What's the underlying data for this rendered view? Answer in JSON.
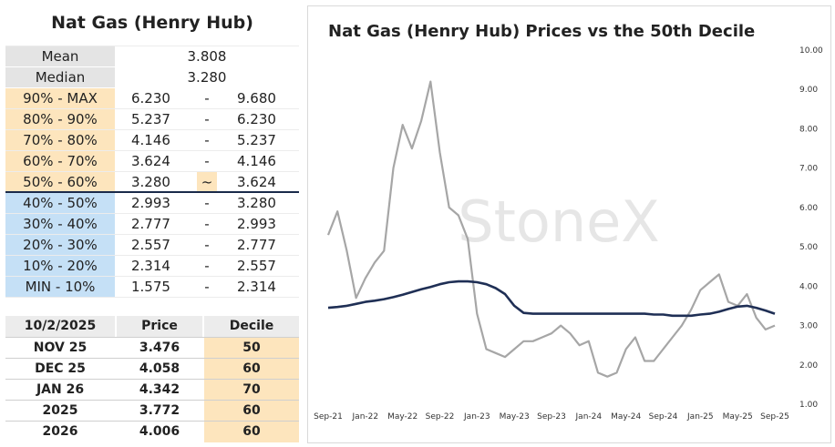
{
  "decile_table": {
    "title": "Nat Gas (Henry Hub)",
    "stats": [
      {
        "label": "Mean",
        "value": "3.808"
      },
      {
        "label": "Median",
        "value": "3.280"
      }
    ],
    "rows": [
      {
        "label": "90% - MAX",
        "low": "6.230",
        "sep": "-",
        "high": "9.680",
        "color": "orange"
      },
      {
        "label": "80% - 90%",
        "low": "5.237",
        "sep": "-",
        "high": "6.230",
        "color": "orange"
      },
      {
        "label": "70% - 80%",
        "low": "4.146",
        "sep": "-",
        "high": "5.237",
        "color": "orange"
      },
      {
        "label": "60% - 70%",
        "low": "3.624",
        "sep": "-",
        "high": "4.146",
        "color": "orange"
      },
      {
        "label": "50% - 60%",
        "low": "3.280",
        "sep": "~",
        "high": "3.624",
        "color": "orange"
      },
      {
        "label": "40% - 50%",
        "low": "2.993",
        "sep": "-",
        "high": "3.280",
        "color": "blue"
      },
      {
        "label": "30% - 40%",
        "low": "2.777",
        "sep": "-",
        "high": "2.993",
        "color": "blue"
      },
      {
        "label": "20% - 30%",
        "low": "2.557",
        "sep": "-",
        "high": "2.777",
        "color": "blue"
      },
      {
        "label": "10% - 20%",
        "low": "2.314",
        "sep": "-",
        "high": "2.557",
        "color": "blue"
      },
      {
        "label": "MIN - 10%",
        "low": "1.575",
        "sep": "-",
        "high": "2.314",
        "color": "blue"
      }
    ],
    "colors": {
      "orange": "#fde5bd",
      "blue": "#c5e0f6",
      "gray": "#e4e4e4",
      "divider": "#1a2a4a"
    }
  },
  "price_table": {
    "headers": [
      "10/2/2025",
      "Price",
      "Decile"
    ],
    "rows": [
      {
        "contract": "NOV 25",
        "price": "3.476",
        "decile": "50"
      },
      {
        "contract": "DEC 25",
        "price": "4.058",
        "decile": "60"
      },
      {
        "contract": "JAN 26",
        "price": "4.342",
        "decile": "70"
      },
      {
        "contract": "2025",
        "price": "3.772",
        "decile": "60"
      },
      {
        "contract": "2026",
        "price": "4.006",
        "decile": "60"
      }
    ]
  },
  "chart_data": {
    "type": "line",
    "title": "Nat Gas (Henry Hub) Prices vs the 50th Decile",
    "watermark": "StoneX",
    "x_tick_labels": [
      "Sep-21",
      "Jan-22",
      "May-22",
      "Sep-22",
      "Jan-23",
      "May-23",
      "Sep-23",
      "Jan-24",
      "May-24",
      "Sep-24",
      "Jan-25",
      "May-25",
      "Sep-25"
    ],
    "y_tick_labels": [
      "1.00",
      "2.00",
      "3.00",
      "4.00",
      "5.00",
      "6.00",
      "7.00",
      "8.00",
      "9.00",
      "10.00"
    ],
    "ylim": [
      1,
      10
    ],
    "y_axis_side": "right",
    "series": [
      {
        "color": "#a6a6a6",
        "x": [
          "2021-09",
          "2021-10",
          "2021-11",
          "2021-12",
          "2022-01",
          "2022-02",
          "2022-03",
          "2022-04",
          "2022-05",
          "2022-06",
          "2022-07",
          "2022-08",
          "2022-09",
          "2022-10",
          "2022-11",
          "2022-12",
          "2023-01",
          "2023-02",
          "2023-03",
          "2023-04",
          "2023-05",
          "2023-06",
          "2023-07",
          "2023-08",
          "2023-09",
          "2023-10",
          "2023-11",
          "2023-12",
          "2024-01",
          "2024-02",
          "2024-03",
          "2024-04",
          "2024-05",
          "2024-06",
          "2024-07",
          "2024-08",
          "2024-09",
          "2024-10",
          "2024-11",
          "2024-12",
          "2025-01",
          "2025-02",
          "2025-03",
          "2025-04",
          "2025-05",
          "2025-06",
          "2025-07",
          "2025-08",
          "2025-09"
        ],
        "values": [
          5.3,
          5.9,
          4.9,
          3.7,
          4.2,
          4.6,
          4.9,
          7.0,
          8.1,
          7.5,
          8.2,
          9.2,
          7.4,
          6.0,
          5.8,
          5.2,
          3.3,
          2.4,
          2.3,
          2.2,
          2.4,
          2.6,
          2.6,
          2.7,
          2.8,
          3.0,
          2.8,
          2.5,
          2.6,
          1.8,
          1.7,
          1.8,
          2.4,
          2.7,
          2.1,
          2.1,
          2.4,
          2.7,
          3.0,
          3.4,
          3.9,
          4.1,
          4.3,
          3.6,
          3.5,
          3.8,
          3.2,
          2.9,
          3.0
        ]
      },
      {
        "color": "#1f2f55",
        "x": [
          "2021-09",
          "2021-10",
          "2021-11",
          "2021-12",
          "2022-01",
          "2022-02",
          "2022-03",
          "2022-04",
          "2022-05",
          "2022-06",
          "2022-07",
          "2022-08",
          "2022-09",
          "2022-10",
          "2022-11",
          "2022-12",
          "2023-01",
          "2023-02",
          "2023-03",
          "2023-04",
          "2023-05",
          "2023-06",
          "2023-07",
          "2023-08",
          "2023-09",
          "2023-10",
          "2023-11",
          "2023-12",
          "2024-01",
          "2024-02",
          "2024-03",
          "2024-04",
          "2024-05",
          "2024-06",
          "2024-07",
          "2024-08",
          "2024-09",
          "2024-10",
          "2024-11",
          "2024-12",
          "2025-01",
          "2025-02",
          "2025-03",
          "2025-04",
          "2025-05",
          "2025-06",
          "2025-07",
          "2025-08",
          "2025-09"
        ],
        "values": [
          3.45,
          3.47,
          3.5,
          3.55,
          3.6,
          3.63,
          3.67,
          3.72,
          3.78,
          3.85,
          3.92,
          3.98,
          4.05,
          4.1,
          4.12,
          4.12,
          4.1,
          4.05,
          3.95,
          3.8,
          3.5,
          3.32,
          3.3,
          3.3,
          3.3,
          3.3,
          3.3,
          3.3,
          3.3,
          3.3,
          3.3,
          3.3,
          3.3,
          3.3,
          3.3,
          3.28,
          3.28,
          3.25,
          3.25,
          3.25,
          3.28,
          3.3,
          3.35,
          3.42,
          3.48,
          3.5,
          3.45,
          3.38,
          3.3
        ]
      }
    ]
  }
}
